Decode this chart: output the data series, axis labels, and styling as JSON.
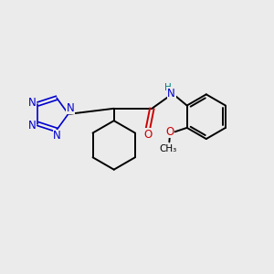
{
  "background_color": "#ebebeb",
  "bond_color": "#000000",
  "n_color": "#0000cc",
  "o_color": "#cc0000",
  "nh_color": "#008080",
  "figsize": [
    3.0,
    3.0
  ],
  "dpi": 100,
  "lw": 1.4,
  "flw": 1.2,
  "fs": 8.5,
  "xlim": [
    0,
    10
  ],
  "ylim": [
    0,
    10
  ]
}
